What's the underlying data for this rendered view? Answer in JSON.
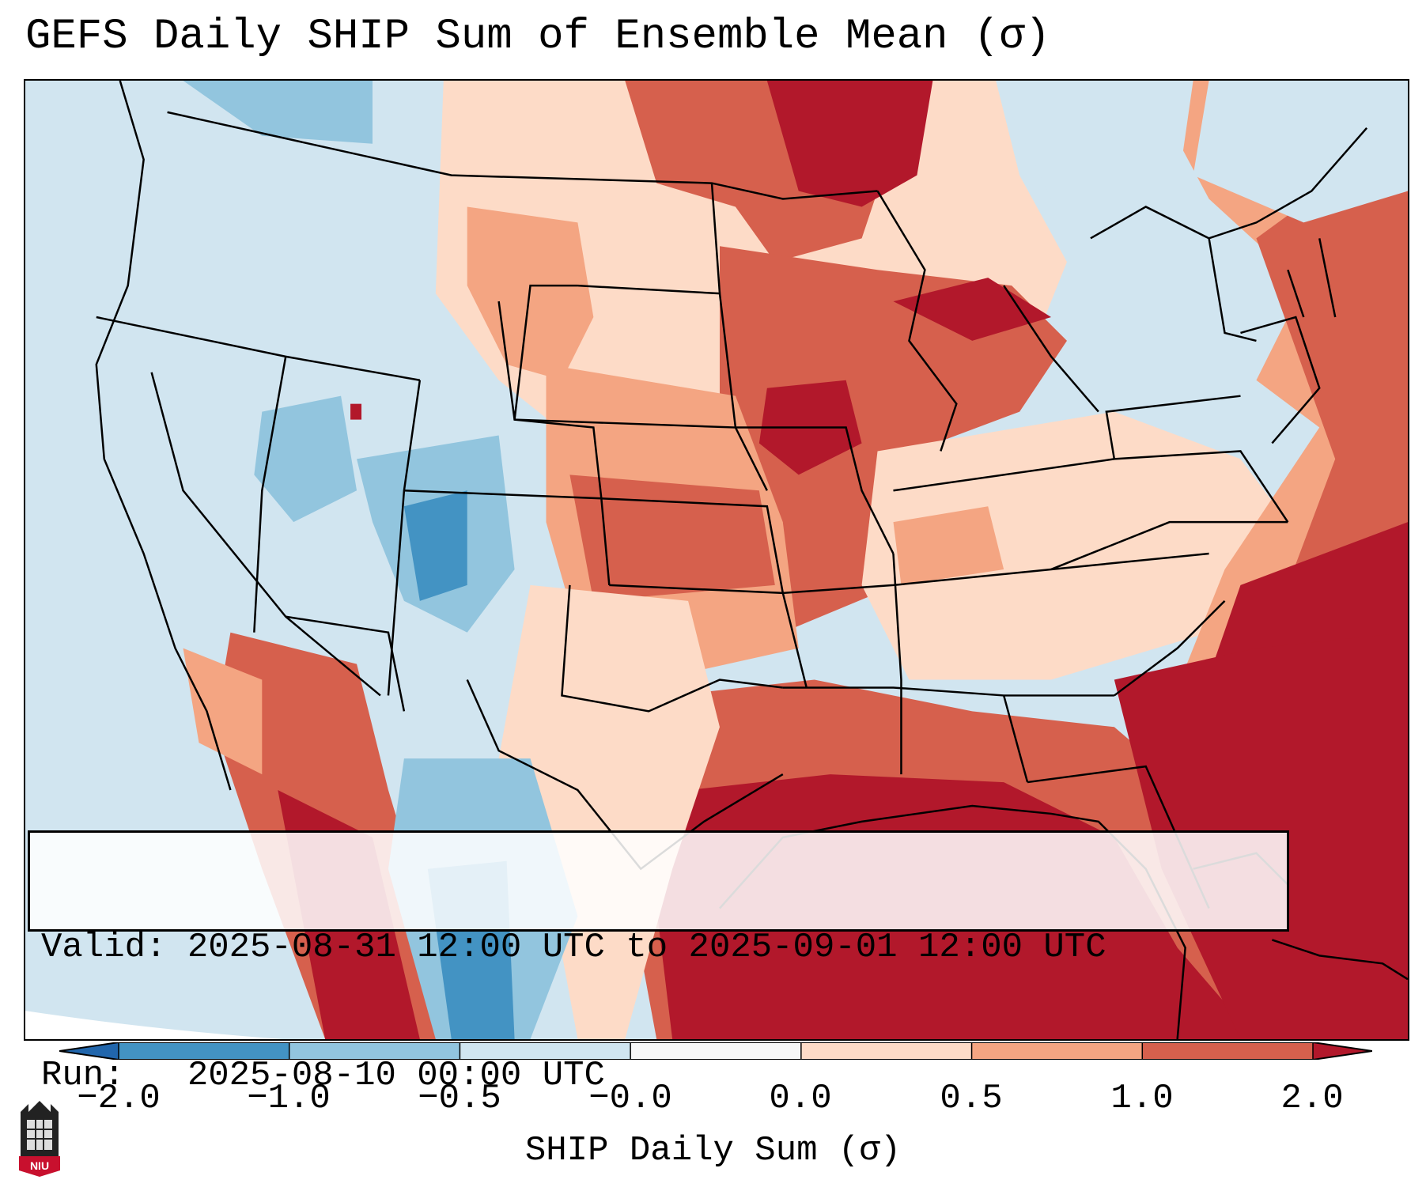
{
  "title": "GEFS Daily SHIP Sum of Ensemble Mean (σ)",
  "info": {
    "valid_line": "Valid: 2025-08-31 12:00 UTC to 2025-09-01 12:00 UTC",
    "run_line": "Run:   2025-08-10 00:00 UTC"
  },
  "colorbar": {
    "label": "SHIP Daily Sum (σ)",
    "ticks": [
      "−2.0",
      "−1.0",
      "−0.5",
      "−0.0",
      "0.0",
      "0.5",
      "1.0",
      "2.0"
    ],
    "bins": [
      {
        "color": "#2166ac"
      },
      {
        "color": "#4393c3"
      },
      {
        "color": "#92c5de"
      },
      {
        "color": "#d1e5f0"
      },
      {
        "color": "#f7f7f7"
      },
      {
        "color": "#fddbc7"
      },
      {
        "color": "#f4a582"
      },
      {
        "color": "#d6604d"
      },
      {
        "color": "#b2182b"
      }
    ]
  },
  "logo": {
    "text": "NIU"
  }
}
